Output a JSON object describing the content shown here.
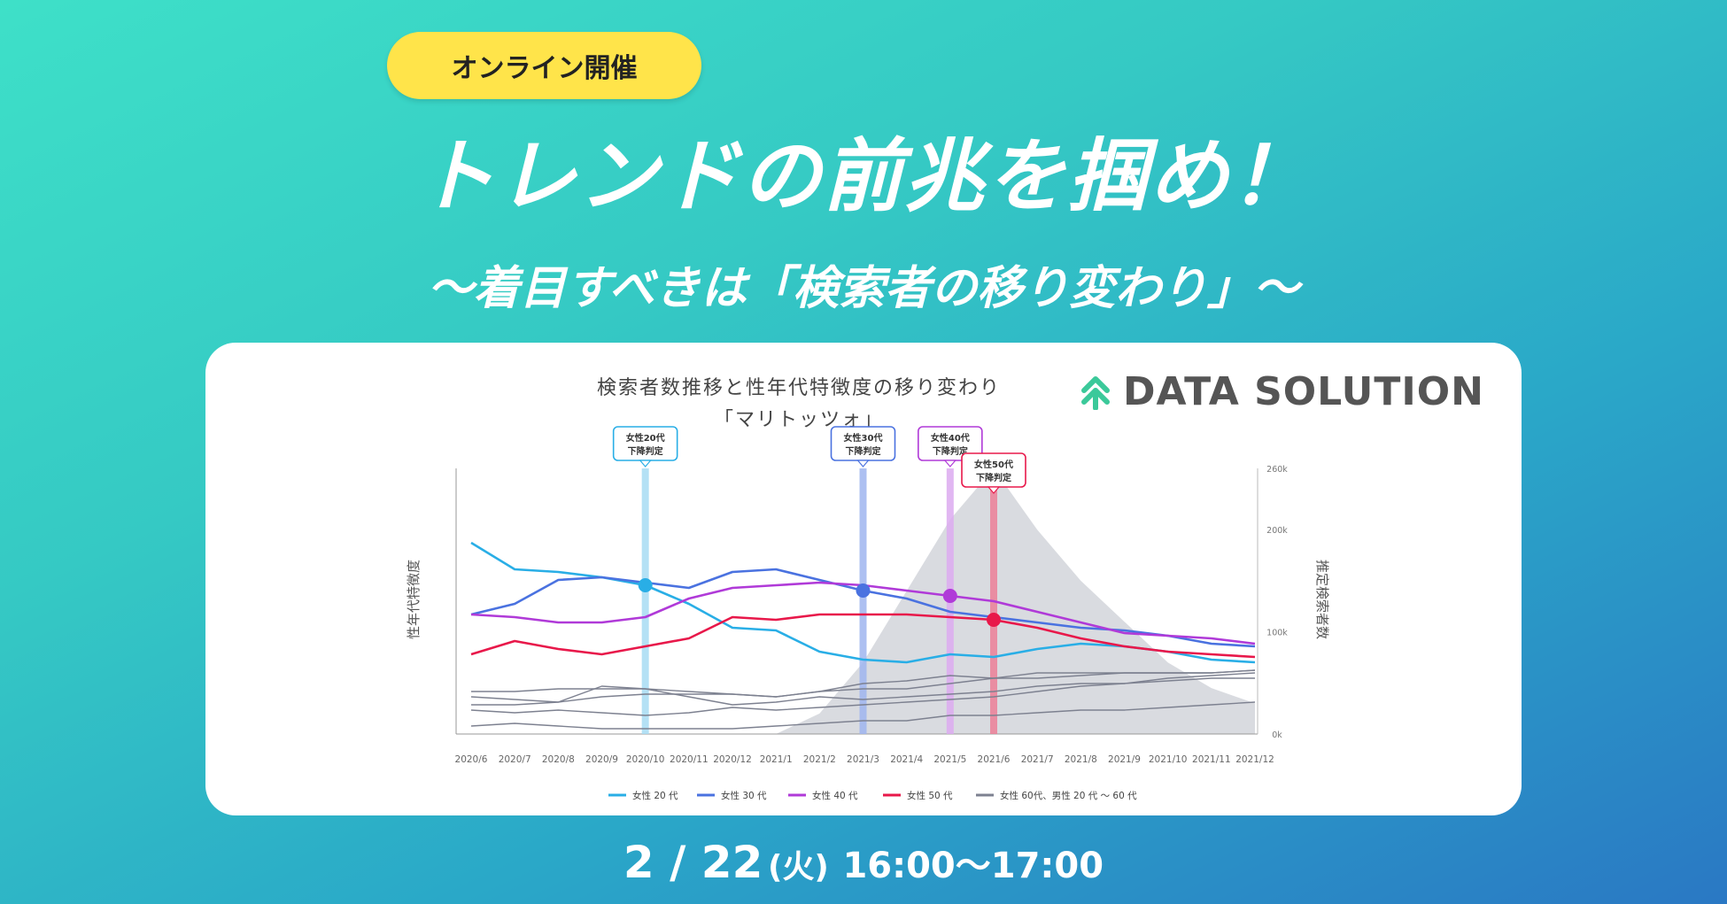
{
  "badge": "オンライン開催",
  "title": "トレンドの前兆を掴め！",
  "subtitle": "～着目すべきは「検索者の移り変わり」～",
  "logo": {
    "text": "DATA SOLUTION",
    "icon": "double-chevron-up-icon",
    "color": "#3bc99a"
  },
  "chart_data": {
    "type": "line",
    "title": "検索者数推移と性年代特徴度の移り変わり",
    "subtitle": "「マリトッツォ」",
    "ylabel_left": "性年代特徴度",
    "ylabel_right": "推定検索者数",
    "x": [
      "2020/6",
      "2020/7",
      "2020/8",
      "2020/9",
      "2020/10",
      "2020/11",
      "2020/12",
      "2021/1",
      "2021/2",
      "2021/3",
      "2021/4",
      "2021/5",
      "2021/6",
      "2021/7",
      "2021/8",
      "2021/9",
      "2021/10",
      "2021/11",
      "2021/12"
    ],
    "right_ticks": [
      "260k",
      "200k",
      "100k",
      "0k"
    ],
    "right_ylim": [
      0,
      260
    ],
    "left_ylim": [
      0,
      1
    ],
    "area": {
      "name": "推定検索者数",
      "color": "#d9dbe0",
      "values": [
        0,
        0,
        0,
        0,
        0,
        0,
        0,
        0,
        20,
        70,
        140,
        210,
        260,
        200,
        150,
        110,
        70,
        45,
        30
      ]
    },
    "series": [
      {
        "name": "女性 20 代",
        "color": "#29aee6",
        "values": [
          0.72,
          0.62,
          0.61,
          0.59,
          0.56,
          0.49,
          0.4,
          0.39,
          0.31,
          0.28,
          0.27,
          0.3,
          0.29,
          0.32,
          0.34,
          0.33,
          0.31,
          0.28,
          0.27
        ]
      },
      {
        "name": "女性 30 代",
        "color": "#4a72e0",
        "values": [
          0.45,
          0.49,
          0.58,
          0.59,
          0.57,
          0.55,
          0.61,
          0.62,
          0.58,
          0.54,
          0.51,
          0.46,
          0.44,
          0.42,
          0.4,
          0.39,
          0.37,
          0.34,
          0.33
        ]
      },
      {
        "name": "女性 40 代",
        "color": "#b03ad8",
        "values": [
          0.45,
          0.44,
          0.42,
          0.42,
          0.44,
          0.51,
          0.55,
          0.56,
          0.57,
          0.56,
          0.54,
          0.52,
          0.5,
          0.46,
          0.42,
          0.38,
          0.37,
          0.36,
          0.34
        ]
      },
      {
        "name": "女性 50 代",
        "color": "#e8184a",
        "values": [
          0.3,
          0.35,
          0.32,
          0.3,
          0.33,
          0.36,
          0.44,
          0.43,
          0.45,
          0.45,
          0.45,
          0.44,
          0.43,
          0.4,
          0.36,
          0.33,
          0.31,
          0.3,
          0.29
        ]
      },
      {
        "name": "女性 60代、男性 20 代 ～ 60 代",
        "color": "#7d8190",
        "values": [
          0.09,
          0.08,
          0.09,
          0.08,
          0.07,
          0.08,
          0.1,
          0.09,
          0.1,
          0.11,
          0.12,
          0.13,
          0.14,
          0.16,
          0.18,
          0.19,
          0.21,
          0.22,
          0.23
        ]
      },
      {
        "name": "",
        "color": "#7d8190",
        "values": [
          0.16,
          0.16,
          0.17,
          0.17,
          0.17,
          0.14,
          0.11,
          0.12,
          0.14,
          0.13,
          0.14,
          0.15,
          0.16,
          0.18,
          0.19,
          0.19,
          0.2,
          0.21,
          0.21
        ]
      },
      {
        "name": "",
        "color": "#7d8190",
        "values": [
          0.14,
          0.13,
          0.12,
          0.18,
          0.17,
          0.16,
          0.15,
          0.14,
          0.16,
          0.17,
          0.17,
          0.19,
          0.21,
          0.21,
          0.22,
          0.23,
          0.23,
          0.23,
          0.24
        ]
      },
      {
        "name": "",
        "color": "#7d8190",
        "values": [
          0.03,
          0.04,
          0.03,
          0.02,
          0.02,
          0.02,
          0.02,
          0.03,
          0.04,
          0.05,
          0.05,
          0.07,
          0.07,
          0.08,
          0.09,
          0.09,
          0.1,
          0.11,
          0.12
        ]
      },
      {
        "name": "",
        "color": "#7d8190",
        "values": [
          0.11,
          0.11,
          0.12,
          0.14,
          0.15,
          0.15,
          0.15,
          0.14,
          0.16,
          0.19,
          0.2,
          0.22,
          0.21,
          0.23,
          0.23,
          0.23,
          0.23,
          0.23,
          0.24
        ]
      }
    ],
    "markers": [
      {
        "label1": "女性20代",
        "label2": "下降判定",
        "x": 4,
        "series": 0,
        "color": "#29aee6",
        "line": "#a7dcf3"
      },
      {
        "label1": "女性30代",
        "label2": "下降判定",
        "x": 9,
        "series": 1,
        "color": "#4a72e0",
        "line": "#9fb5ee"
      },
      {
        "label1": "女性40代",
        "label2": "下降判定",
        "x": 11,
        "series": 2,
        "color": "#b03ad8",
        "line": "#dcaaf0"
      },
      {
        "label1": "女性50代",
        "label2": "下降判定",
        "x": 12,
        "series": 3,
        "color": "#e8184a",
        "line": "#eb7f96"
      }
    ],
    "legend": [
      {
        "label": "女性 20 代",
        "color": "#29aee6"
      },
      {
        "label": "女性 30 代",
        "color": "#4a72e0"
      },
      {
        "label": "女性 40 代",
        "color": "#b03ad8"
      },
      {
        "label": "女性 50 代",
        "color": "#e8184a"
      },
      {
        "label": "女性 60代、男性 20 代 ～ 60 代",
        "color": "#7d8190"
      }
    ],
    "legend_position": "bottom"
  },
  "footer": {
    "date": "2 / 22",
    "dow": "(火)",
    "time": "16:00～17:00"
  }
}
